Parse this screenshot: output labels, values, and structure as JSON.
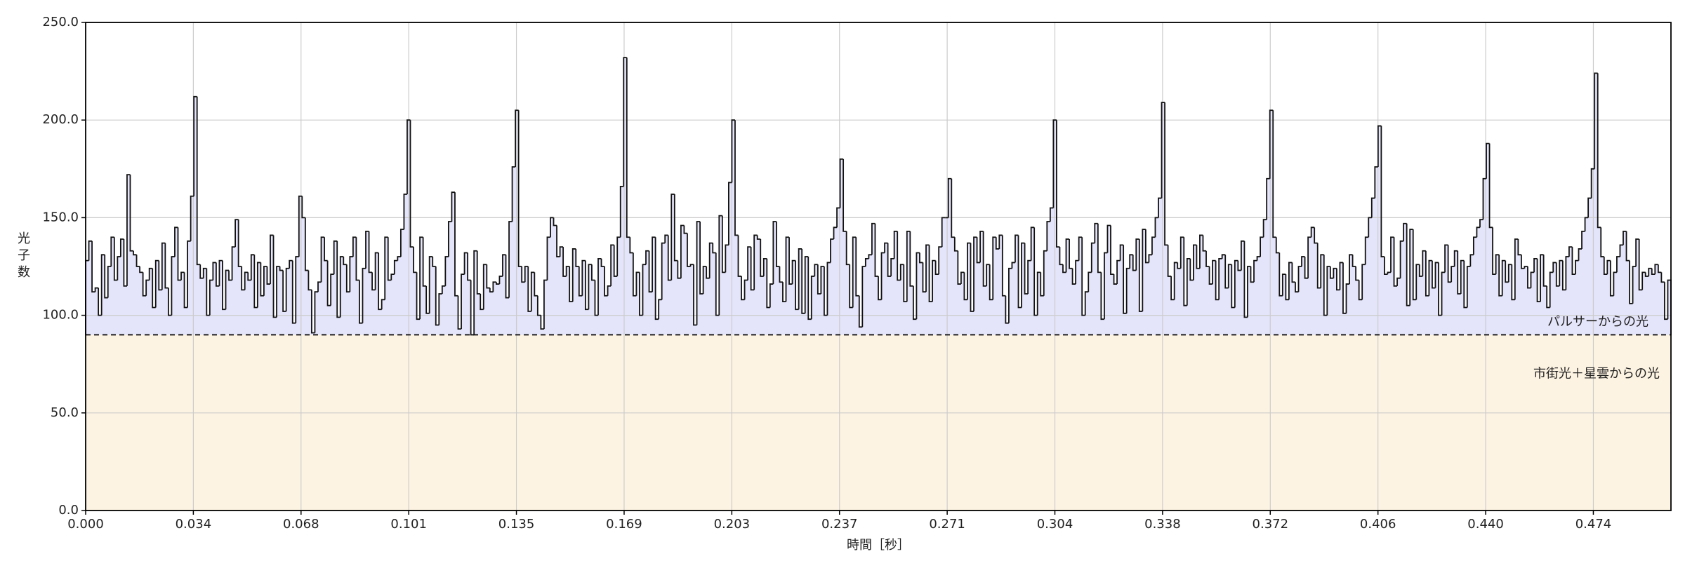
{
  "chart_data": {
    "type": "histogram",
    "xlabel": "時間［秒］",
    "ylabel": "光子数",
    "annotations": [
      "パルサーからの光",
      "市街光＋星雲からの光"
    ],
    "baseline": 90,
    "colors": {
      "line": "#111111",
      "pulsar_fill": "#e4e4fa",
      "background_fill": "#fdf3e2",
      "grid": "#cccccc"
    },
    "grid": true,
    "xlim": [
      0,
      0.498
    ],
    "ylim": [
      0,
      250
    ],
    "xticks": [
      {
        "value": 0,
        "label": "0.000"
      },
      {
        "value": 0.03383,
        "label": "0.034"
      },
      {
        "value": 0.06766,
        "label": "0.068"
      },
      {
        "value": 0.10149,
        "label": "0.101"
      },
      {
        "value": 0.13532,
        "label": "0.135"
      },
      {
        "value": 0.16915,
        "label": "0.169"
      },
      {
        "value": 0.20298,
        "label": "0.203"
      },
      {
        "value": 0.23681,
        "label": "0.237"
      },
      {
        "value": 0.27064,
        "label": "0.271"
      },
      {
        "value": 0.30447,
        "label": "0.304"
      },
      {
        "value": 0.3383,
        "label": "0.338"
      },
      {
        "value": 0.37213,
        "label": "0.372"
      },
      {
        "value": 0.40596,
        "label": "0.406"
      },
      {
        "value": 0.43979,
        "label": "0.440"
      },
      {
        "value": 0.47362,
        "label": "0.474"
      }
    ],
    "yticks": [
      {
        "value": 0,
        "label": "0.0"
      },
      {
        "value": 50,
        "label": "50.0"
      },
      {
        "value": 100,
        "label": "100.0"
      },
      {
        "value": 150,
        "label": "150.0"
      },
      {
        "value": 200,
        "label": "200.0"
      },
      {
        "value": 250,
        "label": "250.0"
      }
    ],
    "bins": [
      0,
      0.001,
      0.002,
      0.003,
      0.004,
      0.005,
      0.006,
      0.007,
      0.008,
      0.009,
      0.01,
      0.011,
      0.012,
      0.013,
      0.014,
      0.015,
      0.016,
      0.017,
      0.018,
      0.019,
      0.02,
      0.021,
      0.022,
      0.023,
      0.024,
      0.025,
      0.026,
      0.027,
      0.028,
      0.029,
      0.03,
      0.031,
      0.032,
      0.033,
      0.034,
      0.035,
      0.036,
      0.037,
      0.038,
      0.039,
      0.04,
      0.041,
      0.042,
      0.043,
      0.044,
      0.045,
      0.046,
      0.047,
      0.048,
      0.049,
      0.05,
      0.051,
      0.052,
      0.053,
      0.054,
      0.055,
      0.056,
      0.057,
      0.058,
      0.059,
      0.06,
      0.061,
      0.062,
      0.063,
      0.064,
      0.065,
      0.066,
      0.067,
      0.068,
      0.069,
      0.07,
      0.071,
      0.072,
      0.073,
      0.074,
      0.075,
      0.076,
      0.077,
      0.078,
      0.079,
      0.08,
      0.081,
      0.082,
      0.083,
      0.084,
      0.085,
      0.086,
      0.087,
      0.088,
      0.089,
      0.09,
      0.091,
      0.092,
      0.093,
      0.094,
      0.095,
      0.096,
      0.097,
      0.098,
      0.099,
      0.1,
      0.101,
      0.102,
      0.103,
      0.104,
      0.105,
      0.106,
      0.107,
      0.108,
      0.109,
      0.11,
      0.111,
      0.112,
      0.113,
      0.114,
      0.115,
      0.116,
      0.117,
      0.118,
      0.119,
      0.12,
      0.121,
      0.122,
      0.123,
      0.124,
      0.125,
      0.126,
      0.127,
      0.128,
      0.129,
      0.13,
      0.131,
      0.132,
      0.133,
      0.134,
      0.135,
      0.136,
      0.137,
      0.138,
      0.139,
      0.14,
      0.141,
      0.142,
      0.143,
      0.144,
      0.145,
      0.146,
      0.147,
      0.148,
      0.149,
      0.15,
      0.151,
      0.152,
      0.153,
      0.154,
      0.155,
      0.156,
      0.157,
      0.158,
      0.159,
      0.16,
      0.161,
      0.162,
      0.163,
      0.164,
      0.165,
      0.166,
      0.167,
      0.168,
      0.169,
      0.17,
      0.171,
      0.172,
      0.173,
      0.174,
      0.175,
      0.176,
      0.177,
      0.178,
      0.179,
      0.18,
      0.181,
      0.182,
      0.183,
      0.184,
      0.185,
      0.186,
      0.187,
      0.188,
      0.189,
      0.19,
      0.191,
      0.192,
      0.193,
      0.194,
      0.195,
      0.196,
      0.197,
      0.198,
      0.199,
      0.2,
      0.201,
      0.202,
      0.203,
      0.204,
      0.205,
      0.206,
      0.207,
      0.208,
      0.209,
      0.21,
      0.211,
      0.212,
      0.213,
      0.214,
      0.215,
      0.216,
      0.217,
      0.218,
      0.219,
      0.22,
      0.221,
      0.222,
      0.223,
      0.224,
      0.225,
      0.226,
      0.227,
      0.228,
      0.229,
      0.23,
      0.231,
      0.232,
      0.233,
      0.234,
      0.235,
      0.236,
      0.237,
      0.238,
      0.239,
      0.24,
      0.241,
      0.242,
      0.243,
      0.244,
      0.245,
      0.246,
      0.247,
      0.248,
      0.249,
      0.25,
      0.251,
      0.252,
      0.253,
      0.254,
      0.255,
      0.256,
      0.257,
      0.258,
      0.259,
      0.26,
      0.261,
      0.262,
      0.263,
      0.264,
      0.265,
      0.266,
      0.267,
      0.268,
      0.269,
      0.27,
      0.271,
      0.272,
      0.273,
      0.274,
      0.275,
      0.276,
      0.277,
      0.278,
      0.279,
      0.28,
      0.281,
      0.282,
      0.283,
      0.284,
      0.285,
      0.286,
      0.287,
      0.288,
      0.289,
      0.29,
      0.291,
      0.292,
      0.293,
      0.294,
      0.295,
      0.296,
      0.297,
      0.298,
      0.299,
      0.3,
      0.301,
      0.302,
      0.303,
      0.304,
      0.305,
      0.306,
      0.307,
      0.308,
      0.309,
      0.31,
      0.311,
      0.312,
      0.313,
      0.314,
      0.315,
      0.316,
      0.317,
      0.318,
      0.319,
      0.32,
      0.321,
      0.322,
      0.323,
      0.324,
      0.325,
      0.326,
      0.327,
      0.328,
      0.329,
      0.33,
      0.331,
      0.332,
      0.333,
      0.334,
      0.335,
      0.336,
      0.337,
      0.338,
      0.339,
      0.34,
      0.341,
      0.342,
      0.343,
      0.344,
      0.345,
      0.346,
      0.347,
      0.348,
      0.349,
      0.35,
      0.351,
      0.352,
      0.353,
      0.354,
      0.355,
      0.356,
      0.357,
      0.358,
      0.359,
      0.36,
      0.361,
      0.362,
      0.363,
      0.364,
      0.365,
      0.366,
      0.367,
      0.368,
      0.369,
      0.37,
      0.371,
      0.372,
      0.373,
      0.374,
      0.375,
      0.376,
      0.377,
      0.378,
      0.379,
      0.38,
      0.381,
      0.382,
      0.383,
      0.384,
      0.385,
      0.386,
      0.387,
      0.388,
      0.389,
      0.39,
      0.391,
      0.392,
      0.393,
      0.394,
      0.395,
      0.396,
      0.397,
      0.398,
      0.399,
      0.4,
      0.401,
      0.402,
      0.403,
      0.404,
      0.405,
      0.406,
      0.407,
      0.408,
      0.409,
      0.41,
      0.411,
      0.412,
      0.413,
      0.414,
      0.415,
      0.416,
      0.417,
      0.418,
      0.419,
      0.42,
      0.421,
      0.422,
      0.423,
      0.424,
      0.425,
      0.426,
      0.427,
      0.428,
      0.429,
      0.43,
      0.431,
      0.432,
      0.433,
      0.434,
      0.435,
      0.436,
      0.437,
      0.438,
      0.439,
      0.44,
      0.441,
      0.442,
      0.443,
      0.444,
      0.445,
      0.446,
      0.447,
      0.448,
      0.449,
      0.45,
      0.451,
      0.452,
      0.453,
      0.454,
      0.455,
      0.456,
      0.457,
      0.458,
      0.459,
      0.46,
      0.461,
      0.462,
      0.463,
      0.464,
      0.465,
      0.466,
      0.467,
      0.468,
      0.469,
      0.47,
      0.471,
      0.472,
      0.473,
      0.474,
      0.475,
      0.476,
      0.477,
      0.478,
      0.479,
      0.48,
      0.481,
      0.482,
      0.483,
      0.484,
      0.485,
      0.486,
      0.487,
      0.488,
      0.489,
      0.49,
      0.491,
      0.492,
      0.493,
      0.494,
      0.495,
      0.496,
      0.497,
      0.498
    ],
    "values": [
      128,
      138,
      112,
      114,
      100,
      131,
      109,
      125,
      140,
      118,
      130,
      139,
      115,
      172,
      133,
      131,
      125,
      122,
      110,
      118,
      124,
      104,
      128,
      113,
      137,
      114,
      100,
      130,
      145,
      118,
      122,
      104,
      138,
      161,
      212,
      126,
      119,
      124,
      100,
      118,
      127,
      115,
      128,
      103,
      123,
      118,
      135,
      149,
      125,
      113,
      122,
      118,
      131,
      104,
      127,
      110,
      125,
      116,
      141,
      99,
      125,
      123,
      102,
      124,
      128,
      96,
      130,
      161,
      150,
      123,
      113,
      91,
      112,
      117,
      140,
      128,
      105,
      121,
      138,
      99,
      130,
      126,
      112,
      130,
      140,
      118,
      96,
      124,
      143,
      122,
      113,
      132,
      103,
      108,
      140,
      118,
      121,
      128,
      130,
      144,
      162,
      200,
      135,
      122,
      98,
      140,
      115,
      101,
      130,
      125,
      95,
      111,
      115,
      130,
      148,
      163,
      110,
      93,
      121,
      132,
      118,
      90,
      133,
      111,
      103,
      126,
      114,
      112,
      117,
      116,
      120,
      131,
      109,
      148,
      176,
      205,
      125,
      117,
      125,
      102,
      122,
      110,
      100,
      93,
      118,
      140,
      150,
      146,
      130,
      135,
      120,
      125,
      107,
      134,
      125,
      110,
      128,
      103,
      126,
      118,
      100,
      129,
      125,
      110,
      115,
      136,
      120,
      140,
      166,
      232,
      140,
      132,
      110,
      122,
      100,
      126,
      133,
      112,
      140,
      98,
      108,
      137,
      141,
      118,
      162,
      128,
      119,
      146,
      142,
      125,
      126,
      95,
      148,
      111,
      125,
      119,
      137,
      132,
      100,
      151,
      122,
      136,
      168,
      200,
      141,
      120,
      108,
      118,
      135,
      113,
      141,
      139,
      120,
      129,
      104,
      116,
      148,
      125,
      117,
      107,
      140,
      116,
      128,
      103,
      134,
      101,
      130,
      98,
      120,
      126,
      111,
      125,
      100,
      127,
      139,
      145,
      155,
      180,
      143,
      126,
      104,
      140,
      110,
      94,
      125,
      129,
      131,
      147,
      120,
      108,
      132,
      137,
      120,
      129,
      143,
      118,
      126,
      107,
      143,
      115,
      98,
      132,
      127,
      112,
      136,
      107,
      128,
      121,
      135,
      150,
      150,
      170,
      140,
      133,
      116,
      122,
      108,
      137,
      102,
      140,
      127,
      143,
      115,
      126,
      108,
      140,
      134,
      141,
      110,
      96,
      124,
      127,
      141,
      104,
      137,
      111,
      128,
      145,
      100,
      122,
      110,
      133,
      148,
      155,
      200,
      135,
      126,
      122,
      139,
      124,
      116,
      128,
      140,
      100,
      112,
      122,
      137,
      147,
      122,
      98,
      132,
      146,
      121,
      116,
      128,
      136,
      101,
      124,
      131,
      123,
      139,
      102,
      144,
      127,
      131,
      140,
      150,
      160,
      209,
      136,
      120,
      108,
      127,
      124,
      140,
      105,
      129,
      118,
      136,
      124,
      141,
      133,
      125,
      116,
      128,
      108,
      129,
      131,
      114,
      126,
      104,
      128,
      123,
      138,
      99,
      125,
      117,
      128,
      130,
      140,
      149,
      170,
      205,
      140,
      132,
      110,
      121,
      108,
      127,
      117,
      112,
      125,
      130,
      119,
      140,
      145,
      137,
      114,
      131,
      100,
      125,
      119,
      124,
      113,
      127,
      101,
      116,
      131,
      125,
      118,
      108,
      126,
      140,
      150,
      160,
      176,
      197,
      130,
      121,
      122,
      140,
      115,
      119,
      138,
      147,
      105,
      144,
      108,
      126,
      120,
      133,
      110,
      128,
      114,
      127,
      100,
      122,
      136,
      117,
      125,
      133,
      111,
      128,
      104,
      125,
      131,
      140,
      145,
      149,
      170,
      188,
      145,
      121,
      131,
      110,
      128,
      117,
      126,
      108,
      139,
      131,
      124,
      125,
      114,
      122,
      129,
      107,
      131,
      115,
      104,
      122,
      127,
      115,
      128,
      113,
      130,
      135,
      121,
      128,
      134,
      143,
      150,
      160,
      175,
      224,
      145,
      130,
      121,
      128,
      110,
      122,
      130,
      136,
      143,
      128,
      106,
      125,
      139,
      113,
      122,
      120,
      124,
      121,
      126,
      122,
      117,
      98,
      118
    ]
  }
}
